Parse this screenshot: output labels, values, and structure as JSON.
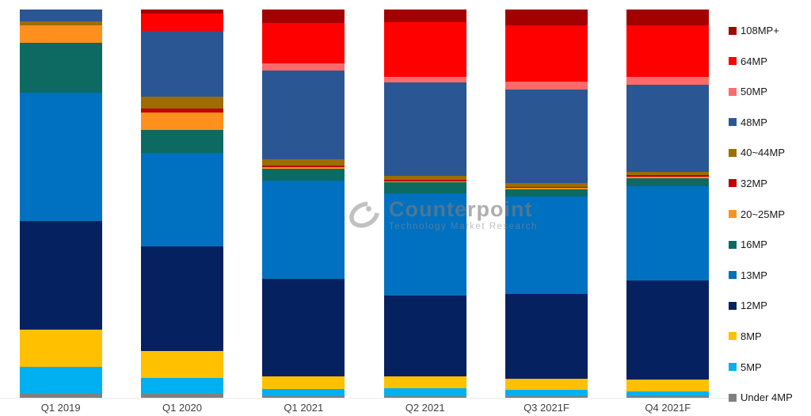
{
  "chart_data": {
    "type": "bar",
    "stacked": true,
    "orientation": "vertical",
    "unit": "% share of smartphone camera resolutions",
    "title": "",
    "xlabel": "",
    "ylabel": "",
    "ylim": [
      0,
      100
    ],
    "grid": false,
    "legend_position": "right",
    "categories": [
      "Q1 2019",
      "Q1 2020",
      "Q1 2021",
      "Q2 2021",
      "Q3 2021F",
      "Q4 2021F"
    ],
    "series": [
      {
        "name": "108MP+",
        "color": "#A30000",
        "values": [
          0,
          1,
          3.5,
          3.3,
          4,
          4
        ]
      },
      {
        "name": "64MP",
        "color": "#FF0000",
        "values": [
          0,
          4.5,
          10.5,
          14,
          14.5,
          13.5
        ]
      },
      {
        "name": "50MP",
        "color": "#FB6B6B",
        "values": [
          0,
          0,
          1.7,
          1.5,
          2,
          2
        ]
      },
      {
        "name": "48MP",
        "color": "#2A5794",
        "values": [
          3,
          17,
          23,
          24,
          24,
          22.5
        ]
      },
      {
        "name": "40~44MP",
        "color": "#9C6D00",
        "values": [
          1,
          3,
          1.6,
          1,
          1,
          0.8
        ]
      },
      {
        "name": "32MP",
        "color": "#C00000",
        "values": [
          0,
          1,
          0.4,
          0.4,
          0.3,
          0.4
        ]
      },
      {
        "name": "20~25MP",
        "color": "#FF901E",
        "values": [
          4.5,
          4.5,
          0.4,
          0.4,
          0.3,
          0.4
        ]
      },
      {
        "name": "16MP",
        "color": "#0D6A63",
        "values": [
          13,
          6,
          3,
          2.7,
          2,
          2
        ]
      },
      {
        "name": "13MP",
        "color": "#0070C0",
        "values": [
          33,
          24,
          25.5,
          26.3,
          25,
          24.5
        ]
      },
      {
        "name": "12MP",
        "color": "#06215F",
        "values": [
          28,
          27,
          25,
          21,
          21.7,
          25.5
        ]
      },
      {
        "name": "8MP",
        "color": "#FFC000",
        "values": [
          9.5,
          7,
          3.3,
          2.9,
          2.9,
          3.1
        ]
      },
      {
        "name": "5MP",
        "color": "#00B0F0",
        "values": [
          7,
          4,
          1.9,
          2.1,
          1.7,
          1.3
        ]
      },
      {
        "name": "Under 4MP",
        "color": "#808080",
        "values": [
          1,
          1,
          0.4,
          0.4,
          0.3,
          0.3
        ]
      }
    ]
  },
  "watermark": {
    "brand": "Counterpoint",
    "tagline": "Technology Market Research"
  },
  "colors": {
    "background": "#ffffff",
    "axis_line": "#ececec",
    "axis_label_text": "#404040",
    "legend_text": "#1a1a1a",
    "watermark_gray": "#7d7d7d"
  }
}
